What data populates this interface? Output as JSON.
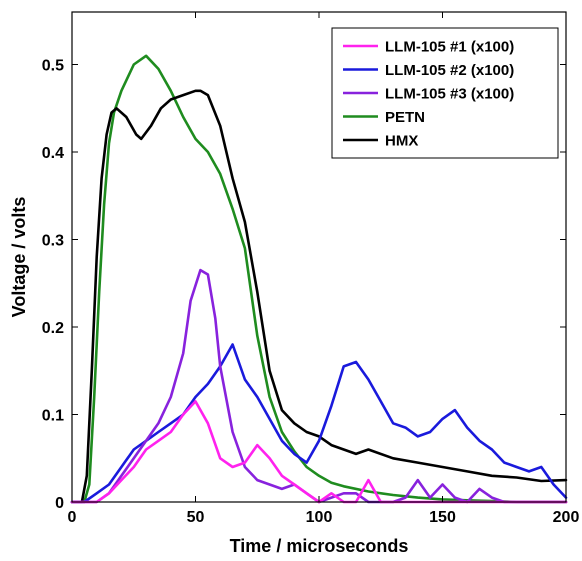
{
  "chart_data": {
    "type": "line",
    "title": "",
    "xlabel": "Time / microseconds",
    "ylabel": "Voltage / volts",
    "xlim": [
      0,
      200
    ],
    "ylim": [
      0,
      0.56
    ],
    "x_ticks": [
      0,
      50,
      100,
      150,
      200
    ],
    "y_ticks": [
      0,
      0.1,
      0.2,
      0.3,
      0.4,
      0.5
    ],
    "x_tick_labels": [
      "0",
      "50",
      "100",
      "150",
      "200"
    ],
    "y_tick_labels": [
      "0",
      "0.1",
      "0.2",
      "0.3",
      "0.4",
      "0.5"
    ],
    "grid": false,
    "legend_position": "top-right",
    "series": [
      {
        "name": "LLM-105 #1 (x100)",
        "color": "#ff22ee",
        "x": [
          0,
          5,
          10,
          15,
          20,
          25,
          30,
          35,
          40,
          45,
          50,
          55,
          60,
          65,
          70,
          75,
          80,
          85,
          90,
          95,
          100,
          105,
          110,
          115,
          120,
          125,
          130,
          135,
          140,
          145,
          150,
          155,
          160,
          165,
          170,
          175,
          180,
          185,
          190,
          195,
          200
        ],
        "values": [
          0.0,
          0.0,
          0.0,
          0.01,
          0.025,
          0.04,
          0.06,
          0.07,
          0.08,
          0.1,
          0.115,
          0.09,
          0.05,
          0.04,
          0.045,
          0.065,
          0.05,
          0.03,
          0.02,
          0.01,
          0.0,
          0.01,
          0.0,
          0.0,
          0.025,
          0.0,
          0.0,
          0.0,
          0.0,
          0.0,
          0.0,
          0.0,
          0.0,
          0.0,
          0.0,
          0.0,
          0.0,
          0.0,
          0.0,
          0.0,
          0.0
        ]
      },
      {
        "name": "LLM-105 #2 (x100)",
        "color": "#1a1adc",
        "x": [
          0,
          5,
          10,
          15,
          20,
          25,
          30,
          35,
          40,
          45,
          50,
          55,
          60,
          65,
          70,
          75,
          80,
          85,
          90,
          95,
          100,
          105,
          110,
          115,
          120,
          125,
          130,
          135,
          140,
          145,
          150,
          155,
          160,
          165,
          170,
          175,
          180,
          185,
          190,
          195,
          200
        ],
        "values": [
          0.0,
          0.0,
          0.01,
          0.02,
          0.04,
          0.06,
          0.07,
          0.08,
          0.09,
          0.1,
          0.12,
          0.135,
          0.155,
          0.18,
          0.14,
          0.12,
          0.095,
          0.07,
          0.055,
          0.045,
          0.07,
          0.11,
          0.155,
          0.16,
          0.14,
          0.115,
          0.09,
          0.085,
          0.075,
          0.08,
          0.095,
          0.105,
          0.085,
          0.07,
          0.06,
          0.045,
          0.04,
          0.035,
          0.04,
          0.02,
          0.005
        ]
      },
      {
        "name": "LLM-105 #3 (x100)",
        "color": "#8822dd",
        "x": [
          0,
          5,
          10,
          15,
          20,
          25,
          30,
          35,
          40,
          45,
          48,
          52,
          55,
          58,
          60,
          65,
          70,
          75,
          80,
          85,
          90,
          95,
          100,
          105,
          110,
          115,
          120,
          125,
          130,
          135,
          140,
          145,
          150,
          155,
          160,
          165,
          170,
          175,
          180,
          185,
          190,
          195,
          200
        ],
        "values": [
          0.0,
          0.0,
          0.0,
          0.01,
          0.03,
          0.05,
          0.07,
          0.09,
          0.12,
          0.17,
          0.23,
          0.265,
          0.26,
          0.21,
          0.155,
          0.08,
          0.04,
          0.025,
          0.02,
          0.015,
          0.02,
          0.01,
          0.0,
          0.005,
          0.01,
          0.01,
          0.0,
          0.0,
          0.0,
          0.005,
          0.025,
          0.005,
          0.02,
          0.005,
          0.0,
          0.015,
          0.005,
          0.0,
          0.0,
          0.0,
          0.0,
          0.0,
          0.0
        ]
      },
      {
        "name": "PETN",
        "color": "#1f8c1f",
        "x": [
          0,
          5,
          7,
          9,
          11,
          13,
          15,
          17,
          20,
          25,
          30,
          35,
          40,
          45,
          50,
          55,
          60,
          65,
          70,
          75,
          80,
          85,
          90,
          95,
          100,
          105,
          110,
          120,
          130,
          140,
          150,
          160,
          170,
          180,
          190,
          200
        ],
        "values": [
          0.0,
          0.0,
          0.02,
          0.12,
          0.24,
          0.34,
          0.41,
          0.445,
          0.47,
          0.5,
          0.51,
          0.495,
          0.47,
          0.44,
          0.415,
          0.4,
          0.375,
          0.335,
          0.29,
          0.19,
          0.12,
          0.08,
          0.058,
          0.04,
          0.03,
          0.022,
          0.018,
          0.012,
          0.008,
          0.005,
          0.003,
          0.002,
          0.001,
          0.0,
          0.0,
          0.0
        ]
      },
      {
        "name": "HMX",
        "color": "#000000",
        "x": [
          0,
          4,
          6,
          8,
          10,
          12,
          14,
          16,
          18,
          22,
          26,
          28,
          32,
          36,
          40,
          45,
          50,
          52,
          55,
          60,
          65,
          70,
          75,
          80,
          85,
          90,
          95,
          100,
          105,
          110,
          115,
          120,
          130,
          140,
          150,
          160,
          170,
          180,
          190,
          200
        ],
        "values": [
          0.0,
          0.0,
          0.03,
          0.15,
          0.28,
          0.37,
          0.42,
          0.445,
          0.45,
          0.44,
          0.42,
          0.415,
          0.43,
          0.45,
          0.46,
          0.465,
          0.47,
          0.47,
          0.465,
          0.43,
          0.37,
          0.32,
          0.24,
          0.15,
          0.105,
          0.09,
          0.08,
          0.075,
          0.065,
          0.06,
          0.055,
          0.06,
          0.05,
          0.045,
          0.04,
          0.035,
          0.03,
          0.028,
          0.024,
          0.025
        ]
      }
    ]
  }
}
